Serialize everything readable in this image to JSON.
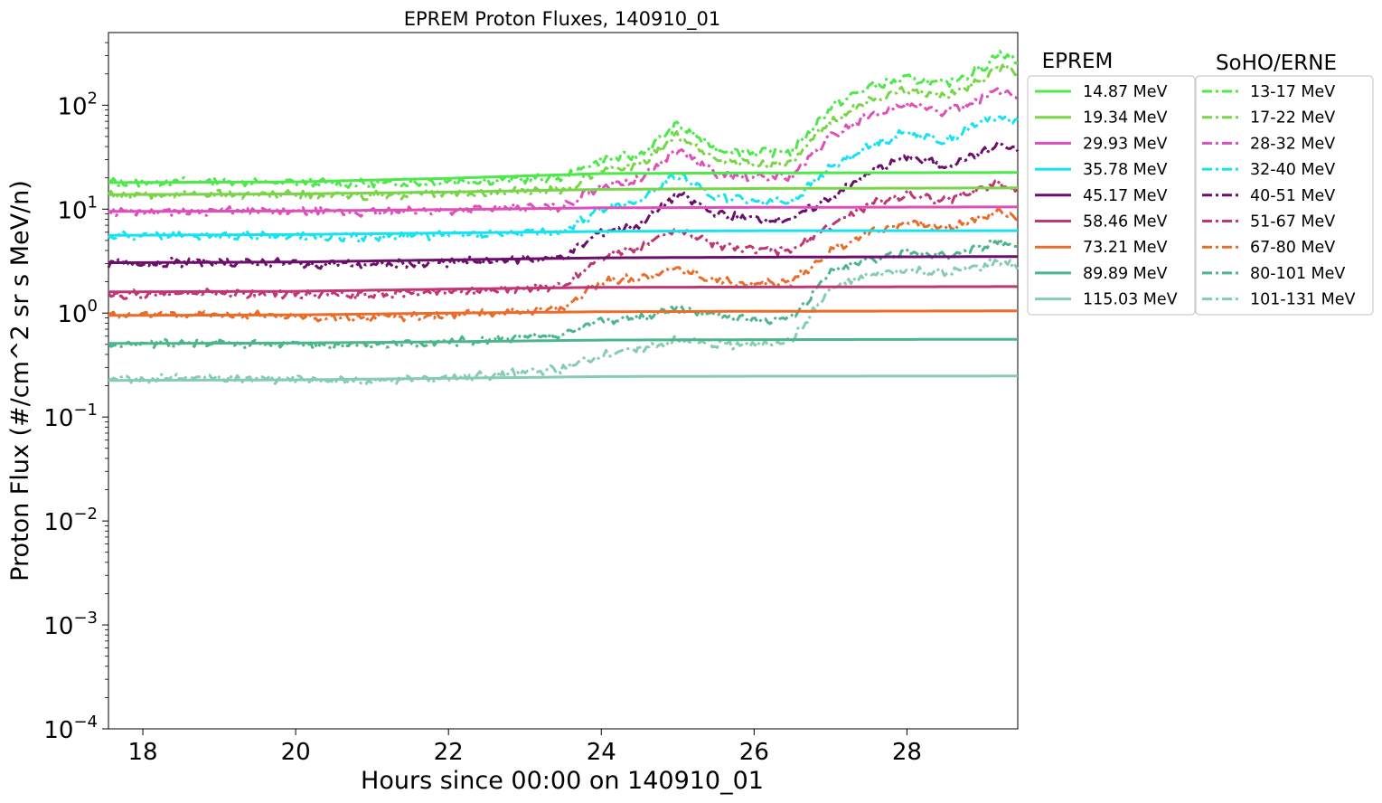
{
  "chart_data": {
    "type": "line",
    "title": "EPREM Proton Fluxes, 140910_01",
    "xlabel": "Hours since 00:00 on 140910_01",
    "ylabel": "Proton Flux (#/cm^2 sr s MeV/n)",
    "xlim": [
      17.55,
      29.45
    ],
    "ylim": [
      0.0001,
      500
    ],
    "yscale": "log",
    "x_ticks": [
      18,
      20,
      22,
      24,
      26,
      28
    ],
    "y_ticks": [
      {
        "value": 0.0001,
        "base": "10",
        "exp": "−4"
      },
      {
        "value": 0.001,
        "base": "10",
        "exp": "−3"
      },
      {
        "value": 0.01,
        "base": "10",
        "exp": "−2"
      },
      {
        "value": 0.1,
        "base": "10",
        "exp": "−1"
      },
      {
        "value": 1,
        "base": "10",
        "exp": "0"
      },
      {
        "value": 10,
        "base": "10",
        "exp": "1"
      },
      {
        "value": 100,
        "base": "10",
        "exp": "2"
      }
    ],
    "legend_placement": "outside right",
    "legend_titles": [
      "EPREM",
      "SoHO/ERNE"
    ],
    "eprem_series": [
      {
        "name": "14.87 MeV",
        "color": "#4de84a",
        "x": [
          17.55,
          20,
          22,
          24,
          26,
          29.45
        ],
        "y": [
          18.0,
          18.3,
          19.8,
          22.0,
          22.3,
          22.5
        ]
      },
      {
        "name": "19.34 MeV",
        "color": "#79d548",
        "x": [
          17.55,
          20,
          22,
          24,
          26,
          29.45
        ],
        "y": [
          13.8,
          14.0,
          14.6,
          15.5,
          15.8,
          16.0
        ]
      },
      {
        "name": "29.93 MeV",
        "color": "#dd4fbb",
        "x": [
          17.55,
          20,
          22,
          24,
          26,
          29.45
        ],
        "y": [
          9.5,
          9.6,
          9.9,
          10.3,
          10.4,
          10.5
        ]
      },
      {
        "name": "35.78 MeV",
        "color": "#17e3f0",
        "x": [
          17.55,
          20,
          22,
          24,
          26,
          29.45
        ],
        "y": [
          5.6,
          5.7,
          5.9,
          6.1,
          6.2,
          6.2
        ]
      },
      {
        "name": "45.17 MeV",
        "color": "#6b0f6b",
        "x": [
          17.55,
          20,
          22,
          24,
          26,
          29.45
        ],
        "y": [
          3.05,
          3.1,
          3.25,
          3.4,
          3.45,
          3.5
        ]
      },
      {
        "name": "58.46 MeV",
        "color": "#c03573",
        "x": [
          17.55,
          20,
          22,
          24,
          26,
          29.45
        ],
        "y": [
          1.6,
          1.62,
          1.7,
          1.77,
          1.78,
          1.8
        ]
      },
      {
        "name": "73.21 MeV",
        "color": "#ea6c2a",
        "x": [
          17.55,
          20,
          22,
          24,
          26,
          29.45
        ],
        "y": [
          0.95,
          0.96,
          1.0,
          1.03,
          1.04,
          1.05
        ]
      },
      {
        "name": "89.89 MeV",
        "color": "#4bb58b",
        "x": [
          17.55,
          20,
          22,
          24,
          26,
          29.45
        ],
        "y": [
          0.51,
          0.515,
          0.53,
          0.55,
          0.555,
          0.56
        ]
      },
      {
        "name": "115.03 MeV",
        "color": "#86ccb1",
        "x": [
          17.55,
          20,
          22,
          24,
          26,
          29.45
        ],
        "y": [
          0.225,
          0.228,
          0.236,
          0.245,
          0.247,
          0.248
        ]
      }
    ],
    "erne_series": [
      {
        "name": "13-17 MeV",
        "color": "#4de84a",
        "x": [
          17.55,
          19,
          21,
          22.5,
          23.5,
          24,
          24.5,
          25,
          25.5,
          26,
          26.5,
          27,
          27.5,
          28,
          28.5,
          29,
          29.2,
          29.45
        ],
        "y": [
          18,
          18.5,
          17.5,
          19,
          20,
          30,
          33,
          65,
          38,
          35,
          36,
          95,
          150,
          180,
          160,
          230,
          320,
          260
        ]
      },
      {
        "name": "17-22 MeV",
        "color": "#79d548",
        "x": [
          17.55,
          19,
          21,
          22.5,
          23.5,
          24,
          24.5,
          25,
          25.5,
          26,
          26.5,
          27,
          27.5,
          28,
          28.5,
          29,
          29.2,
          29.45
        ],
        "y": [
          13.5,
          14,
          13.5,
          14.5,
          15,
          24,
          26,
          52,
          30,
          27,
          28,
          70,
          110,
          140,
          120,
          180,
          240,
          200
        ]
      },
      {
        "name": "28-32 MeV",
        "color": "#dd4fbb",
        "x": [
          17.55,
          19,
          21,
          22.5,
          23.5,
          24,
          24.5,
          25,
          25.5,
          26,
          26.5,
          27,
          27.5,
          28,
          28.5,
          29,
          29.2,
          29.45
        ],
        "y": [
          9.5,
          9.6,
          9.3,
          10,
          10.5,
          17,
          19,
          38,
          22,
          20,
          21,
          50,
          80,
          100,
          85,
          120,
          140,
          120
        ]
      },
      {
        "name": "32-40 MeV",
        "color": "#17e3f0",
        "x": [
          17.55,
          19,
          21,
          22.5,
          23.5,
          24,
          24.5,
          25,
          25.5,
          26,
          26.5,
          27,
          27.5,
          28,
          28.5,
          29,
          29.2,
          29.45
        ],
        "y": [
          5.5,
          5.6,
          5.4,
          5.8,
          6,
          10,
          12,
          22,
          13,
          12,
          12,
          25,
          40,
          55,
          45,
          70,
          80,
          70
        ]
      },
      {
        "name": "40-51 MeV",
        "color": "#6b0f6b",
        "x": [
          17.55,
          19,
          21,
          22.5,
          23.5,
          24,
          24.5,
          25,
          25.5,
          26,
          26.5,
          27,
          27.5,
          28,
          28.5,
          29,
          29.2,
          29.45
        ],
        "y": [
          3,
          3.1,
          2.9,
          3.2,
          3.4,
          6,
          7,
          14,
          9,
          8,
          8,
          13,
          22,
          32,
          26,
          35,
          42,
          36
        ]
      },
      {
        "name": "51-67 MeV",
        "color": "#c03573",
        "x": [
          17.55,
          19,
          21,
          22.5,
          23.5,
          24,
          24.5,
          25,
          25.5,
          26,
          26.5,
          27,
          27.5,
          28,
          28.5,
          29,
          29.2,
          29.45
        ],
        "y": [
          1.5,
          1.55,
          1.5,
          1.65,
          1.8,
          3.5,
          4.2,
          6.5,
          4.5,
          4,
          4,
          7,
          11,
          14,
          12,
          16,
          18,
          15
        ]
      },
      {
        "name": "67-80 MeV",
        "color": "#ea6c2a",
        "x": [
          17.55,
          19,
          21,
          22.5,
          23.5,
          24,
          24.5,
          25,
          25.5,
          26,
          26.5,
          27,
          27.5,
          28,
          28.5,
          29,
          29.2,
          29.45
        ],
        "y": [
          0.95,
          0.97,
          0.9,
          1,
          1.1,
          2,
          2.2,
          2.7,
          2.1,
          1.9,
          2,
          4,
          6,
          7.5,
          6.5,
          8.5,
          9.5,
          8
        ]
      },
      {
        "name": "80-101 MeV",
        "color": "#4bb58b",
        "x": [
          17.55,
          19,
          21,
          22.5,
          23.5,
          24,
          24.5,
          25,
          25.5,
          26,
          26.5,
          27,
          27.5,
          28,
          28.5,
          29,
          29.2,
          29.45
        ],
        "y": [
          0.5,
          0.51,
          0.49,
          0.55,
          0.6,
          0.85,
          0.9,
          1.1,
          0.95,
          0.85,
          0.9,
          2.5,
          3.3,
          3.8,
          3.6,
          4.3,
          5,
          4.3
        ]
      },
      {
        "name": "101-131 MeV",
        "color": "#86ccb1",
        "x": [
          17.55,
          19,
          21,
          22.5,
          23.5,
          24,
          24.5,
          25,
          25.5,
          26,
          26.5,
          27,
          27.5,
          28,
          28.5,
          29,
          29.2,
          29.45
        ],
        "y": [
          0.23,
          0.24,
          0.22,
          0.25,
          0.29,
          0.4,
          0.45,
          0.55,
          0.5,
          0.5,
          0.55,
          1.7,
          2.3,
          2.6,
          2.4,
          2.8,
          3.2,
          2.8
        ]
      }
    ]
  }
}
